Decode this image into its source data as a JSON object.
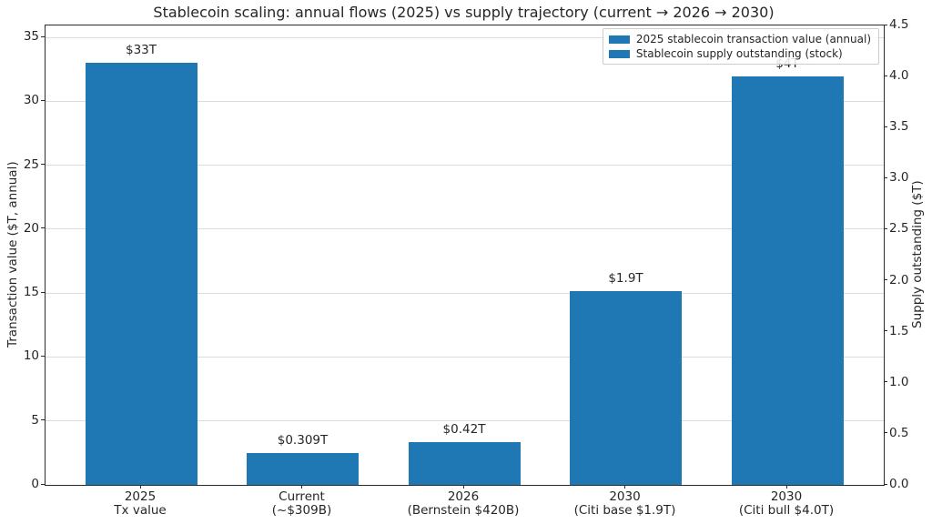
{
  "chart_data": {
    "type": "bar",
    "title": "Stablecoin scaling: annual flows (2025) vs supply trajectory (current → 2026 → 2030)",
    "left_axis": {
      "label": "Transaction value ($T, annual)",
      "ticks": [
        0,
        5,
        10,
        15,
        20,
        25,
        30,
        35
      ],
      "max": 35.93
    },
    "right_axis": {
      "label": "Supply outstanding ($T)",
      "ticks": [
        "0.0",
        "0.5",
        "1.0",
        "1.5",
        "2.0",
        "2.5",
        "3.0",
        "3.5",
        "4.0",
        "4.5"
      ],
      "max": 4.5
    },
    "grid": true,
    "grid_color": "#dcdcdc",
    "bar_color": "#1f77b4",
    "legend_position": "upper right",
    "legend": [
      {
        "label": "2025 stablecoin transaction value (annual)",
        "color": "#1f77b4"
      },
      {
        "label": "Stablecoin supply outstanding (stock)",
        "color": "#1f77b4"
      }
    ],
    "bars": [
      {
        "category": [
          "2025",
          "Tx value"
        ],
        "value": 33,
        "axis": "left",
        "annotation": "$33T"
      },
      {
        "category": [
          "Current",
          "(~$309B)"
        ],
        "value": 0.309,
        "axis": "right",
        "annotation": "$0.309T"
      },
      {
        "category": [
          "2026",
          "(Bernstein $420B)"
        ],
        "value": 0.42,
        "axis": "right",
        "annotation": "$0.42T"
      },
      {
        "category": [
          "2030",
          "(Citi base $1.9T)"
        ],
        "value": 1.9,
        "axis": "right",
        "annotation": "$1.9T"
      },
      {
        "category": [
          "2030",
          "(Citi bull $4.0T)"
        ],
        "value": 4.0,
        "axis": "right",
        "annotation": "$4T"
      }
    ]
  }
}
